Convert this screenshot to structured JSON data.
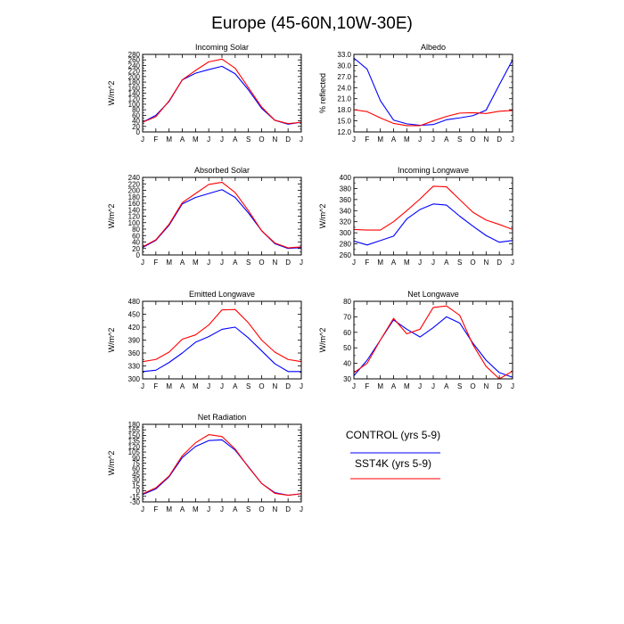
{
  "figure_title": "Europe (45-60N,10W-30E)",
  "legend": {
    "placement": "lower-right",
    "entries": [
      {
        "label": "CONTROL (yrs 5-9)",
        "color": "#0000ff"
      },
      {
        "label": "SST4K (yrs 5-9)",
        "color": "#ff0000"
      }
    ]
  },
  "series_colors": {
    "CONTROL": "#0000ff",
    "SST4K": "#ff0000"
  },
  "chart_data": [
    {
      "type": "line",
      "title": "Incoming Solar",
      "ylabel": "W/m^2",
      "categories": [
        "J",
        "F",
        "M",
        "A",
        "M",
        "J",
        "J",
        "A",
        "S",
        "O",
        "N",
        "D",
        "J"
      ],
      "yticks": [
        "0",
        "20",
        "40",
        "60",
        "80",
        "100",
        "120",
        "140",
        "160",
        "180",
        "200",
        "220",
        "240",
        "260",
        "280"
      ],
      "ylim": [
        0,
        280
      ],
      "series": [
        {
          "name": "CONTROL (yrs 5-9)",
          "values": [
            35,
            60,
            110,
            188,
            212,
            225,
            237,
            210,
            152,
            85,
            42,
            28,
            35
          ]
        },
        {
          "name": "SST4K (yrs 5-9)",
          "values": [
            35,
            55,
            112,
            188,
            222,
            253,
            263,
            230,
            160,
            90,
            42,
            30,
            35
          ]
        }
      ]
    },
    {
      "type": "line",
      "title": "Albedo",
      "ylabel": "% reflected",
      "categories": [
        "J",
        "F",
        "M",
        "A",
        "M",
        "J",
        "J",
        "A",
        "S",
        "O",
        "N",
        "D",
        "J"
      ],
      "yticks": [
        "12.0",
        "15.0",
        "18.0",
        "21.0",
        "24.0",
        "27.0",
        "30.0",
        "33.0"
      ],
      "ylim": [
        12,
        33
      ],
      "series": [
        {
          "name": "CONTROL (yrs 5-9)",
          "values": [
            32.0,
            29.0,
            20.5,
            15.2,
            14.2,
            13.8,
            14.0,
            15.3,
            15.8,
            16.4,
            17.9,
            24.8,
            31.5
          ]
        },
        {
          "name": "SST4K (yrs 5-9)",
          "values": [
            18.0,
            17.5,
            15.8,
            14.3,
            13.7,
            13.7,
            15.0,
            16.2,
            17.1,
            17.2,
            17.0,
            17.6,
            17.8
          ]
        }
      ]
    },
    {
      "type": "line",
      "title": "Absorbed Solar",
      "ylabel": "W/m^2",
      "categories": [
        "J",
        "F",
        "M",
        "A",
        "M",
        "J",
        "J",
        "A",
        "S",
        "O",
        "N",
        "D",
        "J"
      ],
      "yticks": [
        "0",
        "20",
        "40",
        "60",
        "80",
        "100",
        "120",
        "140",
        "160",
        "180",
        "200",
        "220",
        "240"
      ],
      "ylim": [
        0,
        240
      ],
      "series": [
        {
          "name": "CONTROL (yrs 5-9)",
          "values": [
            23,
            45,
            92,
            158,
            178,
            190,
            202,
            178,
            130,
            75,
            35,
            20,
            23
          ]
        },
        {
          "name": "SST4K (yrs 5-9)",
          "values": [
            25,
            47,
            95,
            162,
            190,
            218,
            225,
            193,
            137,
            75,
            37,
            22,
            25
          ]
        }
      ]
    },
    {
      "type": "line",
      "title": "Incoming Longwave",
      "ylabel": "W/m^2",
      "categories": [
        "J",
        "F",
        "M",
        "A",
        "M",
        "J",
        "J",
        "A",
        "S",
        "O",
        "N",
        "D",
        "J"
      ],
      "yticks": [
        "260",
        "280",
        "300",
        "320",
        "340",
        "360",
        "380",
        "400"
      ],
      "ylim": [
        260,
        400
      ],
      "series": [
        {
          "name": "CONTROL (yrs 5-9)",
          "values": [
            285,
            278,
            286,
            294,
            325,
            342,
            352,
            350,
            330,
            312,
            295,
            283,
            286
          ]
        },
        {
          "name": "SST4K (yrs 5-9)",
          "values": [
            306,
            305,
            305,
            320,
            340,
            361,
            384,
            383,
            360,
            337,
            323,
            315,
            306
          ]
        }
      ]
    },
    {
      "type": "line",
      "title": "Emitted Longwave",
      "ylabel": "W/m^2",
      "categories": [
        "J",
        "F",
        "M",
        "A",
        "M",
        "J",
        "J",
        "A",
        "S",
        "O",
        "N",
        "D",
        "J"
      ],
      "yticks": [
        "300",
        "330",
        "360",
        "390",
        "420",
        "450",
        "480"
      ],
      "ylim": [
        300,
        480
      ],
      "series": [
        {
          "name": "CONTROL (yrs 5-9)",
          "values": [
            317,
            320,
            338,
            360,
            385,
            398,
            415,
            420,
            395,
            365,
            335,
            317,
            317
          ]
        },
        {
          "name": "SST4K (yrs 5-9)",
          "values": [
            340,
            345,
            362,
            392,
            402,
            425,
            460,
            461,
            430,
            390,
            362,
            345,
            340
          ]
        }
      ]
    },
    {
      "type": "line",
      "title": "Net Longwave",
      "ylabel": "W/m^2",
      "categories": [
        "J",
        "F",
        "M",
        "A",
        "M",
        "J",
        "J",
        "A",
        "S",
        "O",
        "N",
        "D",
        "J"
      ],
      "yticks": [
        "30",
        "40",
        "50",
        "60",
        "70",
        "80"
      ],
      "ylim": [
        30,
        80
      ],
      "series": [
        {
          "name": "CONTROL (yrs 5-9)",
          "values": [
            32,
            42,
            55,
            68,
            62,
            57,
            63,
            70,
            66,
            53,
            42,
            34,
            31
          ]
        },
        {
          "name": "SST4K (yrs 5-9)",
          "values": [
            34,
            40,
            55,
            69,
            59,
            62,
            76,
            77,
            71,
            52,
            38,
            30,
            35
          ]
        }
      ]
    },
    {
      "type": "line",
      "title": "Net Radiation",
      "ylabel": "W/m^2",
      "categories": [
        "J",
        "F",
        "M",
        "A",
        "M",
        "J",
        "J",
        "A",
        "S",
        "O",
        "N",
        "D",
        "J"
      ],
      "yticks": [
        "-30",
        "-15",
        "0",
        "15",
        "30",
        "45",
        "60",
        "75",
        "90",
        "105",
        "120",
        "135",
        "150",
        "165",
        "180"
      ],
      "ylim": [
        -30,
        180
      ],
      "series": [
        {
          "name": "CONTROL (yrs 5-9)",
          "values": [
            -10,
            5,
            38,
            90,
            120,
            136,
            138,
            110,
            65,
            20,
            -5,
            -12,
            -8
          ]
        },
        {
          "name": "SST4K (yrs 5-9)",
          "values": [
            -8,
            8,
            40,
            95,
            130,
            152,
            147,
            113,
            64,
            20,
            -7,
            -12,
            -8
          ]
        }
      ]
    }
  ]
}
